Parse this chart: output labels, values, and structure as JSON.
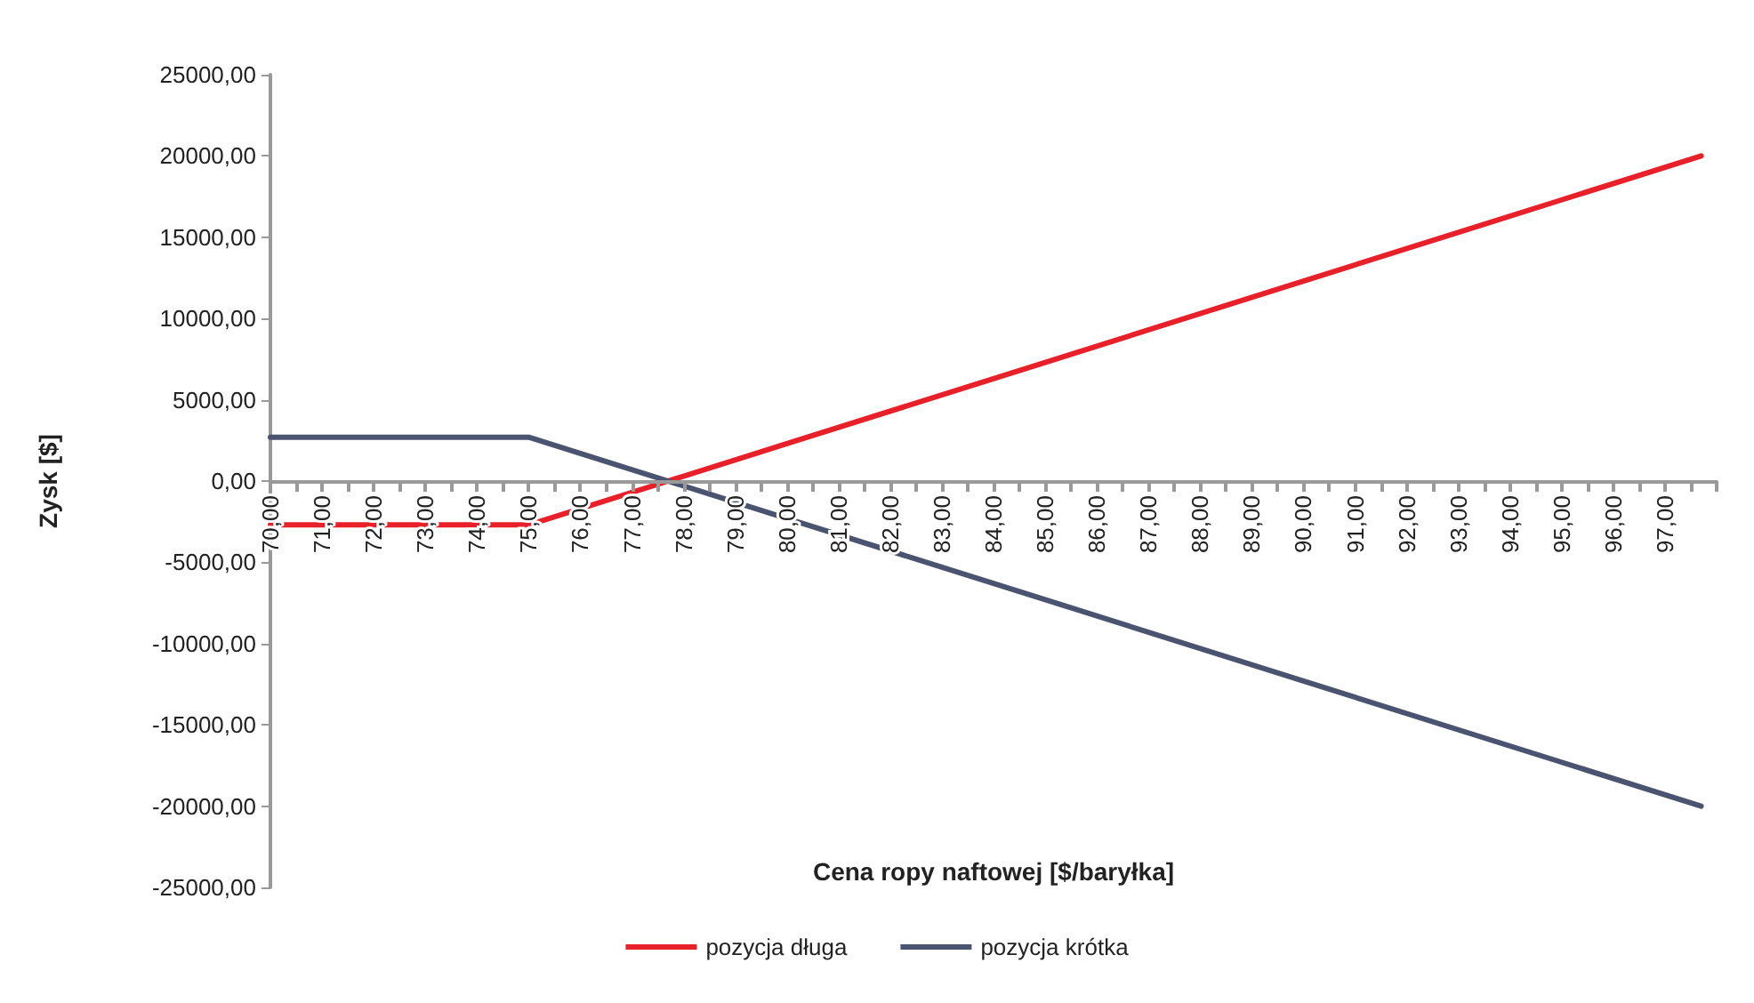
{
  "chart_data": {
    "type": "line",
    "xlabel": "Cena ropy naftowej [$/baryłka]",
    "ylabel": "Zysk [$]",
    "xlim": [
      70,
      98
    ],
    "xticks": [
      {
        "value": 70,
        "label": "70,00"
      },
      {
        "value": 70.5,
        "label": null
      },
      {
        "value": 71,
        "label": "71,00"
      },
      {
        "value": 71.5,
        "label": null
      },
      {
        "value": 72,
        "label": "72,00"
      },
      {
        "value": 72.5,
        "label": null
      },
      {
        "value": 73,
        "label": "73,00"
      },
      {
        "value": 73.5,
        "label": null
      },
      {
        "value": 74,
        "label": "74,00"
      },
      {
        "value": 74.5,
        "label": null
      },
      {
        "value": 75,
        "label": "75,00"
      },
      {
        "value": 75.5,
        "label": null
      },
      {
        "value": 76,
        "label": "76,00"
      },
      {
        "value": 76.5,
        "label": null
      },
      {
        "value": 77,
        "label": "77,00"
      },
      {
        "value": 77.5,
        "label": null
      },
      {
        "value": 78,
        "label": "78,00"
      },
      {
        "value": 78.5,
        "label": null
      },
      {
        "value": 79,
        "label": "79,00"
      },
      {
        "value": 79.5,
        "label": null
      },
      {
        "value": 80,
        "label": "80,00"
      },
      {
        "value": 80.5,
        "label": null
      },
      {
        "value": 81,
        "label": "81,00"
      },
      {
        "value": 81.5,
        "label": null
      },
      {
        "value": 82,
        "label": "82,00"
      },
      {
        "value": 82.5,
        "label": null
      },
      {
        "value": 83,
        "label": "83,00"
      },
      {
        "value": 83.5,
        "label": null
      },
      {
        "value": 84,
        "label": "84,00"
      },
      {
        "value": 84.5,
        "label": null
      },
      {
        "value": 85,
        "label": "85,00"
      },
      {
        "value": 85.5,
        "label": null
      },
      {
        "value": 86,
        "label": "86,00"
      },
      {
        "value": 86.5,
        "label": null
      },
      {
        "value": 87,
        "label": "87,00"
      },
      {
        "value": 87.5,
        "label": null
      },
      {
        "value": 88,
        "label": "88,00"
      },
      {
        "value": 88.5,
        "label": null
      },
      {
        "value": 89,
        "label": "89,00"
      },
      {
        "value": 89.5,
        "label": null
      },
      {
        "value": 90,
        "label": "90,00"
      },
      {
        "value": 90.5,
        "label": null
      },
      {
        "value": 91,
        "label": "91,00"
      },
      {
        "value": 91.5,
        "label": null
      },
      {
        "value": 92,
        "label": "92,00"
      },
      {
        "value": 92.5,
        "label": null
      },
      {
        "value": 93,
        "label": "93,00"
      },
      {
        "value": 93.5,
        "label": null
      },
      {
        "value": 94,
        "label": "94,00"
      },
      {
        "value": 94.5,
        "label": null
      },
      {
        "value": 95,
        "label": "95,00"
      },
      {
        "value": 95.5,
        "label": null
      },
      {
        "value": 96,
        "label": "96,00"
      },
      {
        "value": 96.5,
        "label": null
      },
      {
        "value": 97,
        "label": "97,00"
      },
      {
        "value": 97.5,
        "label": null
      },
      {
        "value": 98,
        "label": null
      }
    ],
    "ylim": [
      -25000,
      25000
    ],
    "yticks": [
      {
        "value": -25000,
        "label": "-25000,00"
      },
      {
        "value": -20000,
        "label": "-20000,00"
      },
      {
        "value": -15000,
        "label": "-15000,00"
      },
      {
        "value": -10000,
        "label": "-10000,00"
      },
      {
        "value": -5000,
        "label": "-5000,00"
      },
      {
        "value": 0,
        "label": "0,00"
      },
      {
        "value": 5000,
        "label": "5000,00"
      },
      {
        "value": 10000,
        "label": "10000,00"
      },
      {
        "value": 15000,
        "label": "15000,00"
      },
      {
        "value": 20000,
        "label": "20000,00"
      },
      {
        "value": 25000,
        "label": "25000,00"
      }
    ],
    "grid": false,
    "legend": "bottom",
    "marker": "none",
    "line_style": "solid",
    "series": [
      {
        "name": "pozycja długa",
        "color": "#e8202a",
        "x": [
          70,
          75,
          80,
          85,
          90,
          95,
          97.7
        ],
        "values": [
          -2700,
          -2700,
          2300,
          7300,
          12300,
          17300,
          20000
        ]
      },
      {
        "name": "pozycja krótka",
        "color": "#4a5470",
        "x": [
          70,
          75,
          80,
          85,
          90,
          95,
          97.7
        ],
        "values": [
          2700,
          2700,
          -2300,
          -7300,
          -12300,
          -17300,
          -20000
        ]
      }
    ]
  }
}
